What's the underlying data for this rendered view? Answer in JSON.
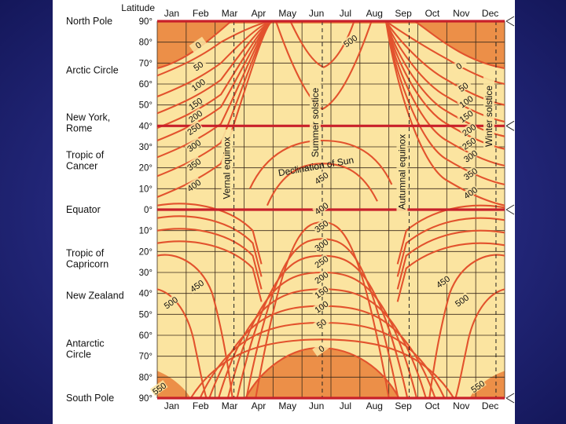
{
  "chart_data": {
    "type": "heatmap",
    "title": "",
    "xlabel": "",
    "ylabel": "Latitude",
    "months": [
      "Jan",
      "Feb",
      "Mar",
      "Apr",
      "May",
      "Jun",
      "Jul",
      "Aug",
      "Sep",
      "Oct",
      "Nov",
      "Dec"
    ],
    "latitude_ticks": [
      "90°",
      "80°",
      "70°",
      "60°",
      "50°",
      "40°",
      "30°",
      "20°",
      "10°",
      "0°",
      "10°",
      "20°",
      "30°",
      "40°",
      "50°",
      "60°",
      "70°",
      "80°",
      "90°"
    ],
    "place_labels": [
      {
        "label": "North Pole",
        "lat": 90
      },
      {
        "label": "Arctic Circle",
        "lat": 66.5
      },
      {
        "label": "New York,\nRome",
        "lat": 41.5
      },
      {
        "label": "Tropic of\nCancer",
        "lat": 23.5
      },
      {
        "label": "Equator",
        "lat": 0
      },
      {
        "label": "Tropic of\nCapricorn",
        "lat": -23.5
      },
      {
        "label": "New Zealand",
        "lat": -41
      },
      {
        "label": "Antarctic\nCircle",
        "lat": -66.5
      },
      {
        "label": "South Pole",
        "lat": -90
      }
    ],
    "highlight_latitudes": [
      90,
      40,
      0,
      -90
    ],
    "event_lines": [
      {
        "label": "Vernal equinox",
        "month_pos": 2.65
      },
      {
        "label": "Summer solstice",
        "month_pos": 5.7
      },
      {
        "label": "Autumnal equinox",
        "month_pos": 8.7
      },
      {
        "label": "Winter solstice",
        "month_pos": 11.7
      }
    ],
    "declination_label": "Declination of Sun",
    "contour_levels": [
      0,
      50,
      100,
      150,
      200,
      250,
      300,
      350,
      400,
      450,
      500,
      550
    ],
    "contour_labels": [
      {
        "text": "0",
        "month_pos": 1.45,
        "lat": 78
      },
      {
        "text": "50",
        "month_pos": 1.45,
        "lat": 68
      },
      {
        "text": "100",
        "month_pos": 1.45,
        "lat": 59
      },
      {
        "text": "150",
        "month_pos": 1.35,
        "lat": 50
      },
      {
        "text": "200",
        "month_pos": 1.35,
        "lat": 44
      },
      {
        "text": "250",
        "month_pos": 1.3,
        "lat": 38
      },
      {
        "text": "300",
        "month_pos": 1.3,
        "lat": 30
      },
      {
        "text": "350",
        "month_pos": 1.3,
        "lat": 21
      },
      {
        "text": "400",
        "month_pos": 1.3,
        "lat": 11
      },
      {
        "text": "500",
        "month_pos": 6.7,
        "lat": 80
      },
      {
        "text": "450",
        "month_pos": 5.7,
        "lat": 14.5
      },
      {
        "text": "400",
        "month_pos": 5.7,
        "lat": 0
      },
      {
        "text": "350",
        "month_pos": 5.7,
        "lat": -8.5
      },
      {
        "text": "300",
        "month_pos": 5.7,
        "lat": -17.5
      },
      {
        "text": "250",
        "month_pos": 5.7,
        "lat": -25.5
      },
      {
        "text": "200",
        "month_pos": 5.7,
        "lat": -33
      },
      {
        "text": "150",
        "month_pos": 5.7,
        "lat": -40
      },
      {
        "text": "100",
        "month_pos": 5.7,
        "lat": -47
      },
      {
        "text": "50",
        "month_pos": 5.7,
        "lat": -55
      },
      {
        "text": "0",
        "month_pos": 5.7,
        "lat": -67
      },
      {
        "text": "0",
        "month_pos": 10.45,
        "lat": 68
      },
      {
        "text": "50",
        "month_pos": 10.6,
        "lat": 58
      },
      {
        "text": "100",
        "month_pos": 10.7,
        "lat": 51
      },
      {
        "text": "150",
        "month_pos": 10.7,
        "lat": 44
      },
      {
        "text": "200",
        "month_pos": 10.8,
        "lat": 37.5
      },
      {
        "text": "250",
        "month_pos": 10.8,
        "lat": 31
      },
      {
        "text": "300",
        "month_pos": 10.85,
        "lat": 25
      },
      {
        "text": "350",
        "month_pos": 10.85,
        "lat": 16.5
      },
      {
        "text": "400",
        "month_pos": 10.85,
        "lat": 7.5
      },
      {
        "text": "450",
        "month_pos": 1.4,
        "lat": -37
      },
      {
        "text": "500",
        "month_pos": 0.5,
        "lat": -45
      },
      {
        "text": "450",
        "month_pos": 9.9,
        "lat": -35
      },
      {
        "text": "500",
        "month_pos": 10.55,
        "lat": -44
      },
      {
        "text": "550",
        "month_pos": 0.1,
        "lat": -86
      },
      {
        "text": "550",
        "month_pos": 11.1,
        "lat": -85
      }
    ]
  }
}
